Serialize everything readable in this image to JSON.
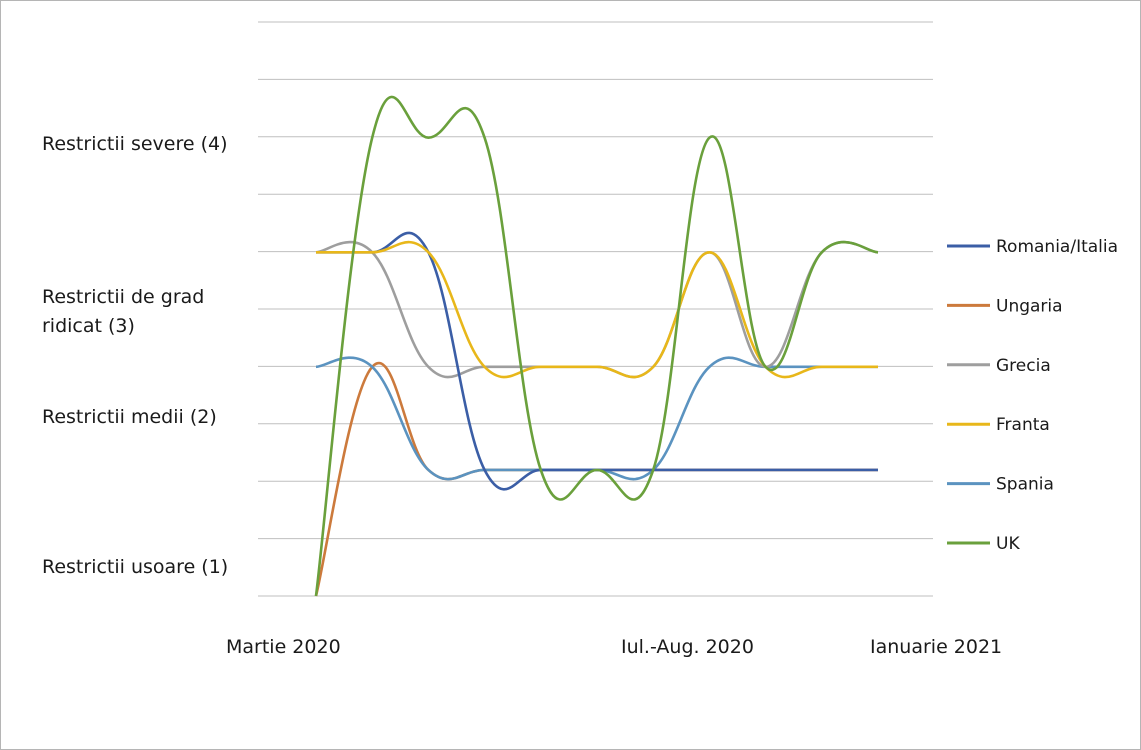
{
  "chart_data": {
    "type": "line",
    "title": "",
    "xlabel": "",
    "ylabel": "",
    "x_tick_labels": [
      "Martie 2020",
      "Iul.-Aug. 2020",
      "Ianuarie 2021"
    ],
    "y_tick_labels": [
      {
        "value": 4,
        "label": "Restrictii severe (4)"
      },
      {
        "value": 3,
        "label": "Restrictii de grad ridicat (3)"
      },
      {
        "value": 2,
        "label": "Restrictii medii (2)"
      },
      {
        "value": 1,
        "label": "Restrictii usoare (1)"
      }
    ],
    "ylim": [
      1,
      6
    ],
    "grid": true,
    "legend_position": "right",
    "x": [
      0,
      1,
      2,
      3,
      4,
      5,
      6,
      7,
      8,
      9,
      10
    ],
    "series": [
      {
        "name": "Romania/Italia",
        "color": "#3b5ea6",
        "values": [
          4,
          4,
          4,
          2.1,
          2.1,
          2.1,
          2.1,
          2.1,
          2.1,
          2.1,
          2.1
        ]
      },
      {
        "name": "Ungaria",
        "color": "#cc7a3c",
        "values": [
          1,
          3,
          2.1,
          2.1,
          2.1,
          2.1,
          2.1,
          2.1,
          2.1,
          2.1,
          2.1
        ]
      },
      {
        "name": "Grecia",
        "color": "#9e9e9e",
        "values": [
          4,
          4,
          3,
          3,
          3,
          3,
          3,
          4,
          3,
          4,
          4
        ]
      },
      {
        "name": "Franta",
        "color": "#e8b71a",
        "values": [
          4,
          4,
          4,
          3,
          3,
          3,
          3,
          4,
          3,
          3,
          3
        ]
      },
      {
        "name": "Spania",
        "color": "#5b93c0",
        "values": [
          3,
          3,
          2.1,
          2.1,
          2.1,
          2.1,
          2.1,
          3,
          3,
          3,
          3
        ]
      },
      {
        "name": "UK",
        "color": "#6aa03c",
        "values": [
          1,
          5,
          5,
          5,
          2.1,
          2.1,
          2.1,
          5,
          3,
          4,
          4
        ]
      }
    ]
  }
}
